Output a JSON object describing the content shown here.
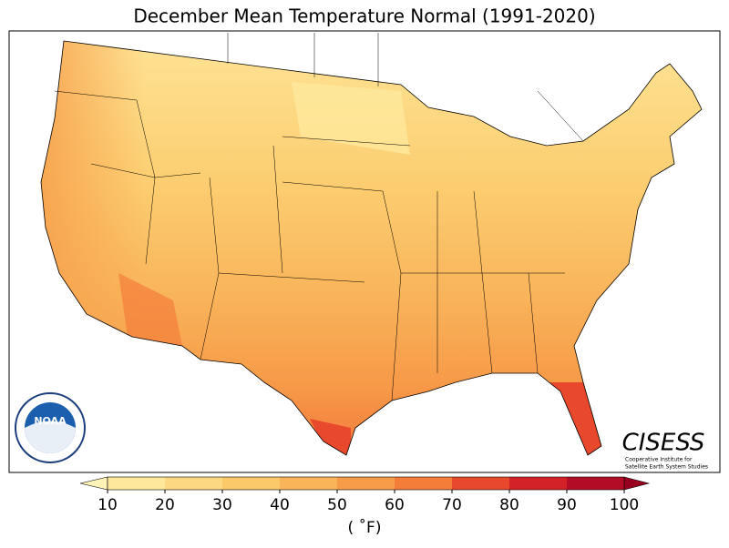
{
  "title": "December Mean Temperature Normal (1991-2020)",
  "colorbar": {
    "ticks": [
      10,
      20,
      30,
      40,
      50,
      60,
      70,
      80,
      90,
      100
    ],
    "colors": [
      "#fee89c",
      "#fdd882",
      "#fbc86a",
      "#f9b45a",
      "#f79c48",
      "#f47d3a",
      "#e8492c",
      "#d32227",
      "#b30c26"
    ],
    "under_color": "#fff3b8",
    "over_color": "#99001f",
    "label": "( ˚F)"
  },
  "logos": {
    "noaa": "NOAA",
    "cisess": "CISESS",
    "cisess_line1": "Cooperative Institute for",
    "cisess_line2": "Satellite Earth System Studies"
  }
}
